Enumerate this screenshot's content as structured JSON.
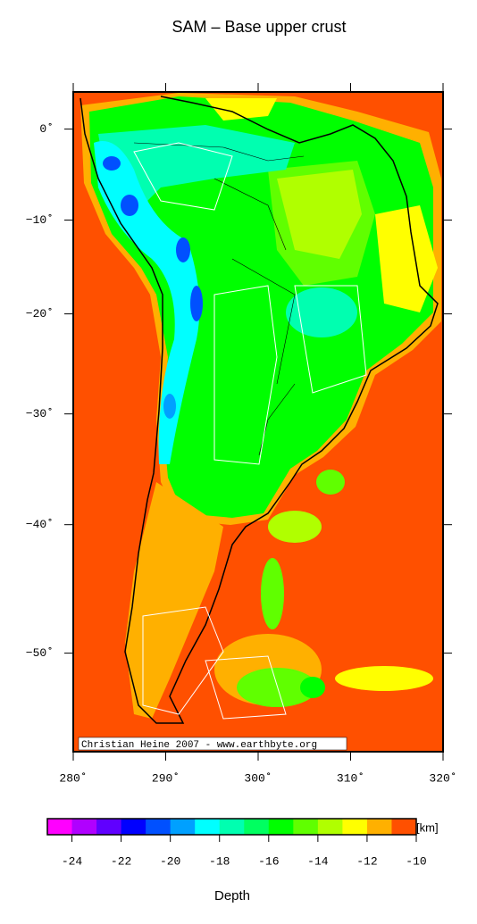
{
  "map": {
    "title": "SAM – Base upper crust",
    "credit": "Christian Heine 2007 - www.earthbyte.org",
    "xlim": [
      280,
      320
    ],
    "ylim": [
      -56.5,
      4.1
    ],
    "xticks": [
      {
        "value": 280,
        "label": "280˚"
      },
      {
        "value": 290,
        "label": "290˚"
      },
      {
        "value": 300,
        "label": "300˚"
      },
      {
        "value": 310,
        "label": "310˚"
      },
      {
        "value": 320,
        "label": "320˚"
      }
    ],
    "yticks": [
      {
        "value": 0,
        "label": "0˚"
      },
      {
        "value": -10,
        "label": "−10˚"
      },
      {
        "value": -20,
        "label": "−20˚"
      },
      {
        "value": -30,
        "label": "−30˚"
      },
      {
        "value": -40,
        "label": "−40˚"
      },
      {
        "value": -50,
        "label": "−50˚"
      }
    ],
    "colorbar": {
      "lim": [
        -25,
        -10
      ],
      "ticks": [
        -24,
        -22,
        -20,
        -18,
        -16,
        -14,
        -12,
        -10
      ],
      "colors": [
        "#ff00ff",
        "#b000ff",
        "#6000ff",
        "#0000ff",
        "#0050ff",
        "#00a0ff",
        "#00ffff",
        "#00ffb0",
        "#00ff60",
        "#00ff00",
        "#60ff00",
        "#b0ff00",
        "#ffff00",
        "#ffb000",
        "#ff5000"
      ],
      "unit": "[km]",
      "label": "Depth"
    }
  }
}
